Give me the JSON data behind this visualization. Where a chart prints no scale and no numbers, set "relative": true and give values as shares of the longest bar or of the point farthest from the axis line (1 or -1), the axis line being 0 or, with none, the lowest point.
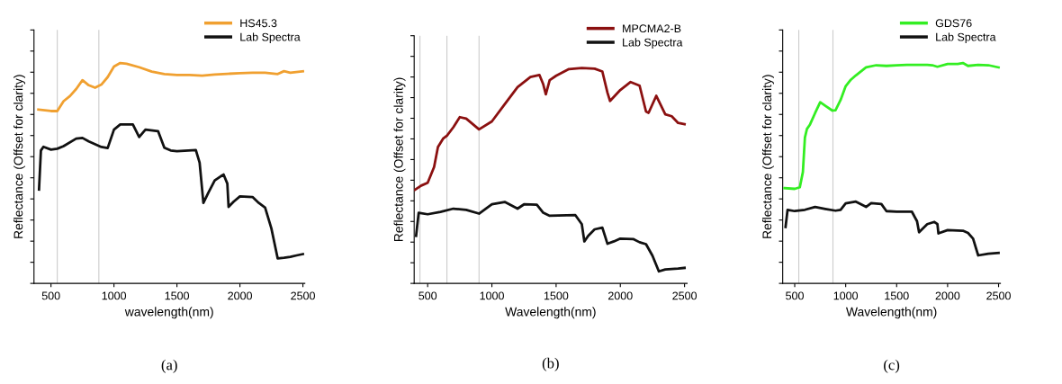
{
  "chart_data": [
    {
      "type": "line",
      "relative": true,
      "xlabel": "wavelength(nm)",
      "ylabel": "Reflectance (Offset for clarity)",
      "xlim": [
        365,
        2515
      ],
      "xticks": [
        500,
        1000,
        1500,
        2000,
        2500
      ],
      "legend": "top right",
      "grid": false,
      "marker": "none",
      "line_style": "solid",
      "annotations": [
        "(a)"
      ],
      "ref_lines": [
        {
          "axis": "x",
          "value": 550,
          "color": "#cccccc"
        },
        {
          "axis": "x",
          "value": 880,
          "color": "#cccccc"
        }
      ],
      "series": [
        {
          "name": "HS45.3",
          "color": "#f0a030",
          "x": [
            400,
            500,
            550,
            600,
            650,
            700,
            750,
            800,
            850,
            900,
            950,
            1000,
            1050,
            1100,
            1200,
            1300,
            1400,
            1500,
            1600,
            1700,
            1800,
            1900,
            2000,
            2100,
            2200,
            2300,
            2350,
            2400,
            2500
          ],
          "values": [
            0.789,
            0.782,
            0.782,
            0.827,
            0.85,
            0.882,
            0.922,
            0.899,
            0.888,
            0.902,
            0.936,
            0.984,
            1.0,
            0.997,
            0.981,
            0.961,
            0.95,
            0.946,
            0.946,
            0.943,
            0.948,
            0.951,
            0.954,
            0.956,
            0.956,
            0.95,
            0.963,
            0.956,
            0.962
          ]
        },
        {
          "name": "Lab Spectra",
          "color": "#111111",
          "x": [
            405,
            420,
            440,
            500,
            550,
            600,
            700,
            750,
            800,
            900,
            950,
            1000,
            1050,
            1150,
            1200,
            1250,
            1350,
            1400,
            1450,
            1500,
            1650,
            1680,
            1710,
            1750,
            1800,
            1850,
            1870,
            1900,
            1910,
            1950,
            2000,
            2100,
            2150,
            2200,
            2250,
            2300,
            2350,
            2400,
            2450,
            2500
          ],
          "values": [
            0.426,
            0.603,
            0.62,
            0.607,
            0.611,
            0.623,
            0.657,
            0.66,
            0.644,
            0.619,
            0.614,
            0.698,
            0.721,
            0.721,
            0.664,
            0.698,
            0.691,
            0.616,
            0.603,
            0.6,
            0.605,
            0.548,
            0.365,
            0.412,
            0.467,
            0.487,
            0.494,
            0.453,
            0.347,
            0.371,
            0.395,
            0.392,
            0.365,
            0.344,
            0.249,
            0.113,
            0.116,
            0.12,
            0.127,
            0.133
          ]
        }
      ]
    },
    {
      "type": "line",
      "relative": true,
      "xlabel": "Wavelength(nm)",
      "ylabel": "Reflectance (Offset for clarity)",
      "xlim": [
        395,
        2520
      ],
      "xticks": [
        500,
        1000,
        1500,
        2000,
        2500
      ],
      "legend": "top right",
      "grid": false,
      "marker": "none",
      "line_style": "solid",
      "annotations": [
        "(b)"
      ],
      "ref_lines": [
        {
          "axis": "x",
          "value": 440,
          "color": "#cccccc"
        },
        {
          "axis": "x",
          "value": 650,
          "color": "#cccccc"
        },
        {
          "axis": "x",
          "value": 900,
          "color": "#cccccc"
        }
      ],
      "series": [
        {
          "name": "MPCMA2-B",
          "color": "#8b1010",
          "x": [
            400,
            450,
            500,
            550,
            580,
            620,
            650,
            700,
            750,
            800,
            900,
            1000,
            1100,
            1200,
            1300,
            1370,
            1400,
            1420,
            1450,
            1500,
            1600,
            1700,
            1800,
            1860,
            1900,
            1920,
            2000,
            2080,
            2150,
            2200,
            2220,
            2280,
            2350,
            2400,
            2450,
            2500
          ],
          "values": [
            0.434,
            0.454,
            0.467,
            0.54,
            0.633,
            0.672,
            0.686,
            0.725,
            0.772,
            0.765,
            0.715,
            0.752,
            0.832,
            0.911,
            0.958,
            0.968,
            0.924,
            0.878,
            0.944,
            0.964,
            0.995,
            1.0,
            0.997,
            0.984,
            0.885,
            0.847,
            0.898,
            0.935,
            0.918,
            0.798,
            0.792,
            0.871,
            0.785,
            0.776,
            0.745,
            0.739
          ]
        },
        {
          "name": "Lab Spectra",
          "color": "#111111",
          "x": [
            410,
            430,
            500,
            600,
            700,
            800,
            900,
            1000,
            1100,
            1200,
            1250,
            1350,
            1400,
            1450,
            1650,
            1700,
            1720,
            1750,
            1800,
            1860,
            1900,
            1950,
            2000,
            2100,
            2150,
            2200,
            2250,
            2300,
            2350,
            2450,
            2500
          ],
          "values": [
            0.221,
            0.328,
            0.321,
            0.332,
            0.347,
            0.341,
            0.324,
            0.367,
            0.378,
            0.347,
            0.367,
            0.365,
            0.328,
            0.314,
            0.317,
            0.275,
            0.195,
            0.221,
            0.251,
            0.259,
            0.184,
            0.195,
            0.208,
            0.206,
            0.191,
            0.182,
            0.129,
            0.056,
            0.065,
            0.069,
            0.072
          ]
        }
      ]
    },
    {
      "type": "line",
      "relative": true,
      "xlabel": "Wavelength(nm)",
      "ylabel": "Reflectance (Offset for clarity)",
      "xlim": [
        382,
        2518
      ],
      "xticks": [
        500,
        1000,
        1500,
        2000,
        2500
      ],
      "legend": "top right",
      "grid": false,
      "marker": "none",
      "line_style": "solid",
      "annotations": [
        "(c)"
      ],
      "ref_lines": [
        {
          "axis": "x",
          "value": 540,
          "color": "#cccccc"
        },
        {
          "axis": "x",
          "value": 875,
          "color": "#cccccc"
        }
      ],
      "series": [
        {
          "name": "GDS76",
          "color": "#33ee22",
          "x": [
            400,
            500,
            550,
            580,
            600,
            620,
            650,
            700,
            750,
            800,
            870,
            900,
            950,
            1000,
            1050,
            1100,
            1200,
            1300,
            1400,
            1500,
            1600,
            1700,
            1800,
            1850,
            1900,
            2000,
            2100,
            2150,
            2200,
            2300,
            2400,
            2500
          ],
          "values": [
            0.432,
            0.429,
            0.436,
            0.505,
            0.662,
            0.701,
            0.721,
            0.773,
            0.822,
            0.806,
            0.784,
            0.786,
            0.832,
            0.895,
            0.924,
            0.944,
            0.98,
            0.99,
            0.987,
            0.99,
            0.992,
            0.992,
            0.992,
            0.99,
            0.983,
            0.996,
            0.996,
            1.0,
            0.987,
            0.992,
            0.99,
            0.98
          ]
        },
        {
          "name": "Lab Spectra",
          "color": "#111111",
          "x": [
            410,
            430,
            500,
            600,
            700,
            800,
            900,
            950,
            1000,
            1100,
            1200,
            1250,
            1350,
            1400,
            1500,
            1650,
            1700,
            1720,
            1800,
            1870,
            1900,
            1910,
            2000,
            2150,
            2200,
            2250,
            2300,
            2400,
            2500
          ],
          "values": [
            0.256,
            0.334,
            0.328,
            0.334,
            0.347,
            0.338,
            0.33,
            0.334,
            0.363,
            0.371,
            0.347,
            0.364,
            0.36,
            0.328,
            0.325,
            0.325,
            0.282,
            0.232,
            0.269,
            0.279,
            0.269,
            0.227,
            0.242,
            0.239,
            0.229,
            0.203,
            0.127,
            0.135,
            0.138
          ]
        }
      ]
    }
  ]
}
